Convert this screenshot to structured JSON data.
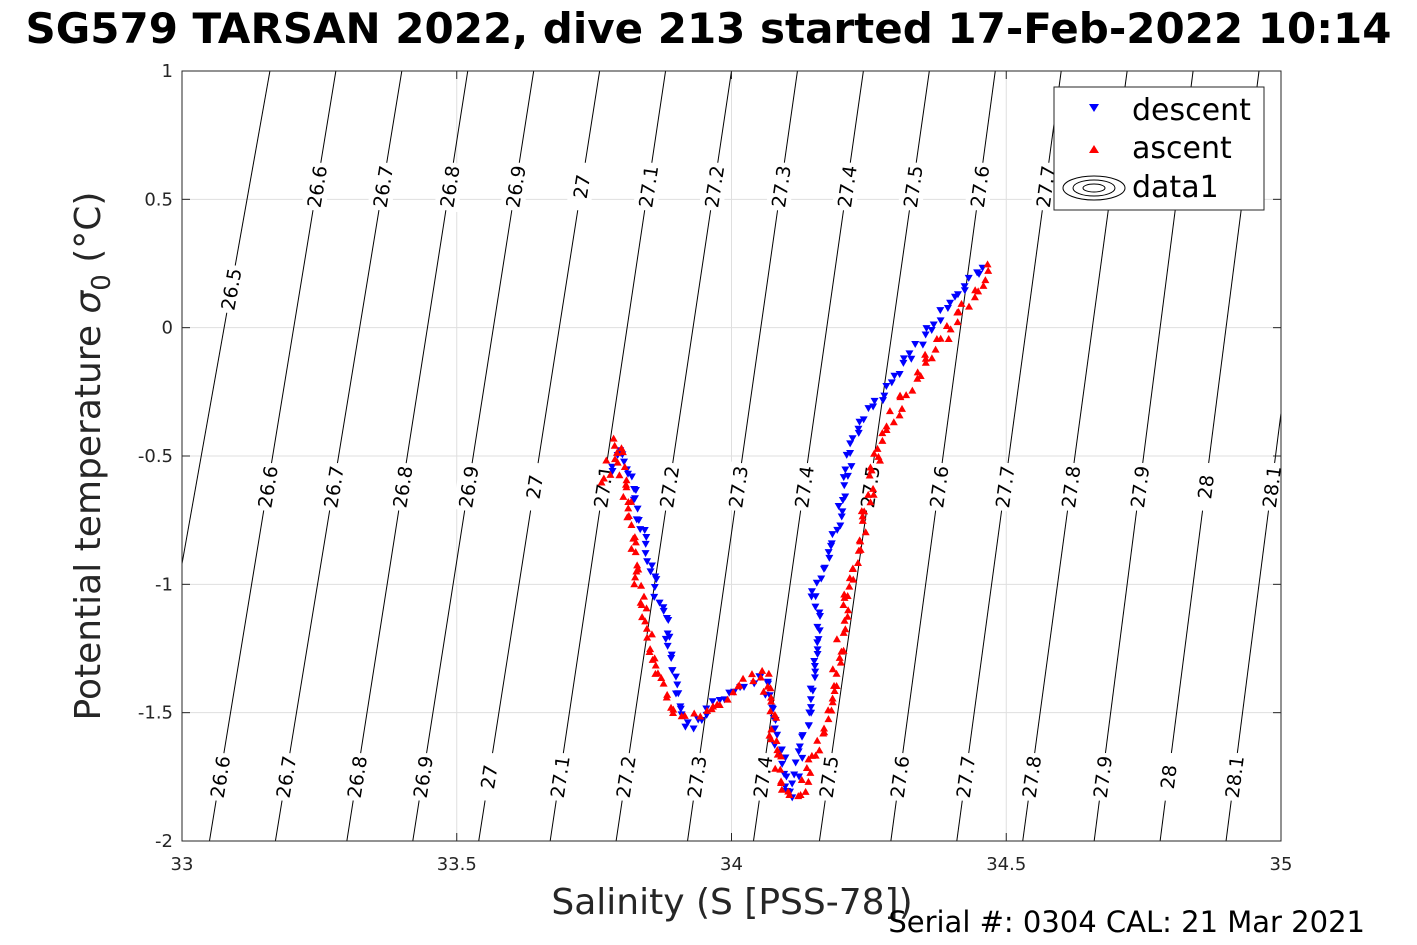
{
  "chart_data": {
    "type": "scatter",
    "title": "SG579 TARSAN 2022, dive 213 started 17-Feb-2022 10:14",
    "xlabel": "Salinity (S [PSS-78])",
    "ylabel_text": "Potential temperature ",
    "ylabel_sym": "σ",
    "ylabel_sub": "0",
    "ylabel_unit": " (°C)",
    "footer": "Serial #: 0304  CAL: 21 Mar 2021",
    "xlim": [
      33,
      35
    ],
    "ylim": [
      -2,
      1
    ],
    "xticks": [
      33,
      33.5,
      34,
      34.5,
      35
    ],
    "xticklabels": [
      "33",
      "33.5",
      "34",
      "34.5",
      "35"
    ],
    "yticks": [
      -2,
      -1.5,
      -1,
      -0.5,
      0,
      0.5,
      1
    ],
    "yticklabels": [
      "-2",
      "-1.5",
      "-1",
      "-0.5",
      "0",
      "0.5",
      "1"
    ],
    "grid": true,
    "legend_position": "top-right",
    "legend": [
      {
        "label": "descent",
        "marker": "triangle-down",
        "color": "#0000ff"
      },
      {
        "label": "ascent",
        "marker": "triangle-up",
        "color": "#ff0000"
      },
      {
        "label": "data1",
        "marker": "contour",
        "color": "#000000"
      }
    ],
    "isopycnals": [
      {
        "level": "26.5",
        "s_at_tmin": 32.91,
        "s_at_tmax": 33.16
      },
      {
        "level": "26.6",
        "s_at_tmin": 33.05,
        "s_at_tmax": 33.28
      },
      {
        "level": "26.7",
        "s_at_tmin": 33.17,
        "s_at_tmax": 33.4
      },
      {
        "level": "26.8",
        "s_at_tmin": 33.3,
        "s_at_tmax": 33.52
      },
      {
        "level": "26.9",
        "s_at_tmin": 33.42,
        "s_at_tmax": 33.64
      },
      {
        "level": "27",
        "s_at_tmin": 33.54,
        "s_at_tmax": 33.76
      },
      {
        "level": "27.1",
        "s_at_tmin": 33.67,
        "s_at_tmax": 33.88
      },
      {
        "level": "27.2",
        "s_at_tmin": 33.79,
        "s_at_tmax": 34.0
      },
      {
        "level": "27.3",
        "s_at_tmin": 33.92,
        "s_at_tmax": 34.12
      },
      {
        "level": "27.4",
        "s_at_tmin": 34.04,
        "s_at_tmax": 34.24
      },
      {
        "level": "27.5",
        "s_at_tmin": 34.16,
        "s_at_tmax": 34.36
      },
      {
        "level": "27.6",
        "s_at_tmin": 34.29,
        "s_at_tmax": 34.48
      },
      {
        "level": "27.7",
        "s_at_tmin": 34.41,
        "s_at_tmax": 34.6
      },
      {
        "level": "27.8",
        "s_at_tmin": 34.53,
        "s_at_tmax": 34.72
      },
      {
        "level": "27.9",
        "s_at_tmin": 34.66,
        "s_at_tmax": 34.84
      },
      {
        "level": "28",
        "s_at_tmin": 34.78,
        "s_at_tmax": 34.96
      },
      {
        "level": "28.1",
        "s_at_tmin": 34.9,
        "s_at_tmax": 35.08
      }
    ],
    "contour_label_rows": [
      {
        "t": 0.55,
        "levels": [
          "26.6",
          "26.7",
          "26.8",
          "26.9",
          "27",
          "27.1",
          "27.2",
          "27.3",
          "27.4",
          "27.5",
          "27.6",
          "27.7"
        ]
      },
      {
        "t": 0.15,
        "levels": [
          "26.5"
        ]
      },
      {
        "t": -0.62,
        "levels": [
          "26.6",
          "26.7",
          "26.8",
          "26.9",
          "27",
          "27.1",
          "27.2",
          "27.3",
          "27.4",
          "27.5",
          "27.6",
          "27.7",
          "27.8",
          "27.9",
          "28",
          "28.1"
        ]
      },
      {
        "t": -1.75,
        "levels": [
          "26.6",
          "26.7",
          "26.8",
          "26.9",
          "27",
          "27.1",
          "27.2",
          "27.3",
          "27.4",
          "27.5",
          "27.6",
          "27.7",
          "27.8",
          "27.9",
          "28",
          "28.1"
        ]
      }
    ],
    "series": [
      {
        "name": "descent",
        "path": [
          [
            34.46,
            0.24
          ],
          [
            34.42,
            0.15
          ],
          [
            34.38,
            0.05
          ],
          [
            34.34,
            -0.06
          ],
          [
            34.3,
            -0.18
          ],
          [
            34.27,
            -0.28
          ],
          [
            34.24,
            -0.36
          ],
          [
            34.22,
            -0.45
          ],
          [
            34.21,
            -0.55
          ],
          [
            34.2,
            -0.68
          ],
          [
            34.19,
            -0.8
          ],
          [
            34.17,
            -0.92
          ],
          [
            34.15,
            -1.02
          ],
          [
            34.16,
            -1.2
          ],
          [
            34.15,
            -1.35
          ],
          [
            34.14,
            -1.5
          ],
          [
            34.13,
            -1.62
          ],
          [
            34.12,
            -1.72
          ],
          [
            34.11,
            -1.82
          ],
          [
            34.1,
            -1.78
          ],
          [
            34.09,
            -1.65
          ],
          [
            34.08,
            -1.58
          ],
          [
            34.07,
            -1.45
          ],
          [
            34.06,
            -1.36
          ],
          [
            34.02,
            -1.4
          ],
          [
            33.98,
            -1.45
          ],
          [
            33.94,
            -1.52
          ],
          [
            33.92,
            -1.56
          ],
          [
            33.9,
            -1.45
          ],
          [
            33.89,
            -1.3
          ],
          [
            33.88,
            -1.15
          ],
          [
            33.86,
            -1.0
          ],
          [
            33.84,
            -0.8
          ],
          [
            33.82,
            -0.62
          ],
          [
            33.8,
            -0.47
          ],
          [
            33.78,
            -0.55
          ]
        ],
        "count": 180,
        "jitter": [
          0.006,
          0.015
        ],
        "seed": 11
      },
      {
        "name": "ascent",
        "path": [
          [
            34.47,
            0.23
          ],
          [
            34.43,
            0.1
          ],
          [
            34.39,
            -0.02
          ],
          [
            34.35,
            -0.15
          ],
          [
            34.31,
            -0.28
          ],
          [
            34.28,
            -0.4
          ],
          [
            34.26,
            -0.55
          ],
          [
            34.25,
            -0.65
          ],
          [
            34.24,
            -0.75
          ],
          [
            34.23,
            -0.9
          ],
          [
            34.21,
            -1.05
          ],
          [
            34.2,
            -1.2
          ],
          [
            34.19,
            -1.35
          ],
          [
            34.18,
            -1.48
          ],
          [
            34.16,
            -1.62
          ],
          [
            34.14,
            -1.75
          ],
          [
            34.13,
            -1.82
          ],
          [
            34.11,
            -1.83
          ],
          [
            34.09,
            -1.78
          ],
          [
            34.08,
            -1.65
          ],
          [
            34.07,
            -1.45
          ],
          [
            34.06,
            -1.34
          ],
          [
            34.02,
            -1.38
          ],
          [
            33.98,
            -1.45
          ],
          [
            33.94,
            -1.52
          ],
          [
            33.9,
            -1.5
          ],
          [
            33.87,
            -1.35
          ],
          [
            33.85,
            -1.2
          ],
          [
            33.83,
            -1.0
          ],
          [
            33.82,
            -0.85
          ],
          [
            33.81,
            -0.62
          ],
          [
            33.79,
            -0.45
          ],
          [
            33.77,
            -0.6
          ]
        ],
        "count": 200,
        "jitter": [
          0.008,
          0.02
        ],
        "seed": 29
      }
    ]
  }
}
